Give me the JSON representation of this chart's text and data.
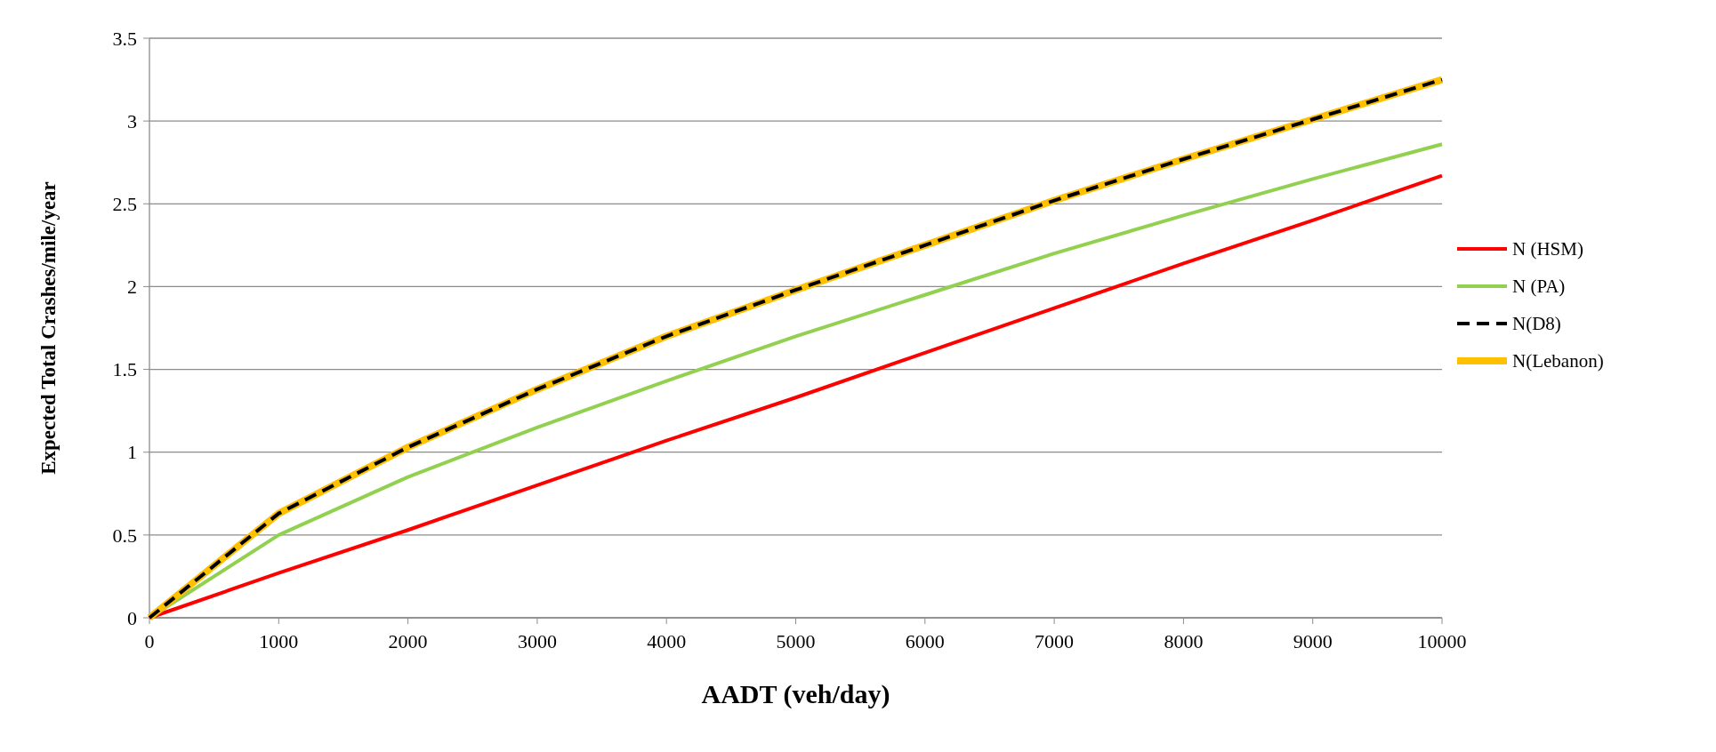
{
  "chart_data": {
    "type": "line",
    "xlabel": "AADT (veh/day)",
    "ylabel": "Expected Total Crashes/mile/year",
    "x": [
      0,
      1000,
      2000,
      3000,
      4000,
      5000,
      6000,
      7000,
      8000,
      9000,
      10000
    ],
    "series": [
      {
        "name": "N (HSM)",
        "color": "#ff0000",
        "values": [
          0,
          0.27,
          0.53,
          0.8,
          1.07,
          1.33,
          1.6,
          1.87,
          2.14,
          2.4,
          2.67
        ]
      },
      {
        "name": "N (PA)",
        "color": "#92d050",
        "values": [
          0,
          0.5,
          0.85,
          1.15,
          1.43,
          1.7,
          1.95,
          2.2,
          2.43,
          2.65,
          2.86
        ]
      },
      {
        "name": "N(Lebanon)",
        "color": "#ffc000",
        "values": [
          0,
          0.63,
          1.03,
          1.38,
          1.7,
          1.98,
          2.25,
          2.52,
          2.77,
          3.01,
          3.25
        ]
      },
      {
        "name": "N(D8)",
        "color": "#000000",
        "line_style": "dashed",
        "values": [
          0,
          0.63,
          1.03,
          1.38,
          1.7,
          1.98,
          2.25,
          2.52,
          2.77,
          3.01,
          3.25
        ]
      }
    ],
    "xlim": [
      0,
      10000
    ],
    "xticks": [
      0,
      1000,
      2000,
      3000,
      4000,
      5000,
      6000,
      7000,
      8000,
      9000,
      10000
    ],
    "ylim": [
      0,
      3.5
    ],
    "yticks": [
      0,
      0.5,
      1,
      1.5,
      2,
      2.5,
      3,
      3.5
    ],
    "grid": "y",
    "legend": "right",
    "marker": "none"
  }
}
